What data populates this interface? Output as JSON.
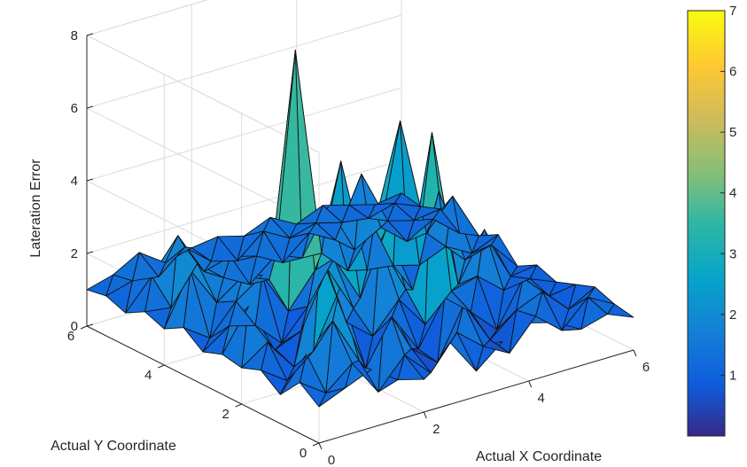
{
  "chart_data": {
    "type": "surface3d",
    "title": "",
    "xlabel": "Actual X Coordinate",
    "ylabel": "Actual Y Coordinate",
    "zlabel": "Lateration Error",
    "xlim": [
      0,
      6
    ],
    "ylim": [
      0,
      6
    ],
    "zlim": [
      0,
      8
    ],
    "xticks": [
      "0",
      "2",
      "4",
      "6"
    ],
    "yticks": [
      "0",
      "2",
      "4",
      "6"
    ],
    "zticks": [
      "0",
      "2",
      "4",
      "6",
      "8"
    ],
    "colorbar": {
      "clim": [
        0,
        7
      ],
      "ticks": [
        "1",
        "2",
        "3",
        "4",
        "5",
        "6",
        "7"
      ],
      "colormap": "parula"
    },
    "grid": true,
    "x": [
      0,
      0.5,
      1,
      1.5,
      2,
      2.5,
      3,
      3.5,
      4,
      4.5,
      5,
      5.5,
      6
    ],
    "y": [
      0,
      0.5,
      1,
      1.5,
      2,
      2.5,
      3,
      3.5,
      4,
      4.5,
      5,
      5.5,
      6
    ],
    "z": [
      [
        1.0,
        1.3,
        1.6,
        1.1,
        0.9,
        1.7,
        0.7,
        1.3,
        1.6,
        1.4,
        1.0,
        1.2,
        0.9
      ],
      [
        1.4,
        0.9,
        1.5,
        0.5,
        1.3,
        0.6,
        1.5,
        0.9,
        0.5,
        1.3,
        0.7,
        1.4,
        1.0
      ],
      [
        0.8,
        1.7,
        2.4,
        1.1,
        2.6,
        1.0,
        0.4,
        1.8,
        0.6,
        1.2,
        1.5,
        0.8,
        1.2
      ],
      [
        1.2,
        0.7,
        1.3,
        2.8,
        0.4,
        1.6,
        0.5,
        1.7,
        1.1,
        0.4,
        1.6,
        0.9,
        1.0
      ],
      [
        1.0,
        1.5,
        0.6,
        3.5,
        1.4,
        0.8,
        1.6,
        0.7,
        1.4,
        1.6,
        1.0,
        1.1,
        0.8
      ],
      [
        1.1,
        2.2,
        0.8,
        1.1,
        2.6,
        1.3,
        2.9,
        1.4,
        5.5,
        1.1,
        2.4,
        0.9,
        1.0
      ],
      [
        0.9,
        1.4,
        1.2,
        0.5,
        1.3,
        2.4,
        1.1,
        2.8,
        0.9,
        3.4,
        1.3,
        1.5,
        0.7
      ],
      [
        1.3,
        0.8,
        1.6,
        2.1,
        0.9,
        1.8,
        4.6,
        1.4,
        1.3,
        1.1,
        1.4,
        1.0,
        1.3
      ],
      [
        1.0,
        2.4,
        1.3,
        1.8,
        1.5,
        7.6,
        1.8,
        1.1,
        2.1,
        4.8,
        1.5,
        2.3,
        1.0
      ],
      [
        1.2,
        1.1,
        2.1,
        1.5,
        1.1,
        1.7,
        1.4,
        2.6,
        1.2,
        1.6,
        1.0,
        1.4,
        0.8
      ],
      [
        0.9,
        1.7,
        2.6,
        1.4,
        1.6,
        1.4,
        1.0,
        1.6,
        1.2,
        2.8,
        1.3,
        1.1,
        1.2
      ],
      [
        1.1,
        1.3,
        1.2,
        1.8,
        1.2,
        1.0,
        1.6,
        1.2,
        1.4,
        1.2,
        1.1,
        1.3,
        1.0
      ],
      [
        1.0,
        1.2,
        1.6,
        1.1,
        1.3,
        1.4,
        1.2,
        1.5,
        1.1,
        1.4,
        1.2,
        1.0,
        1.1
      ]
    ]
  }
}
